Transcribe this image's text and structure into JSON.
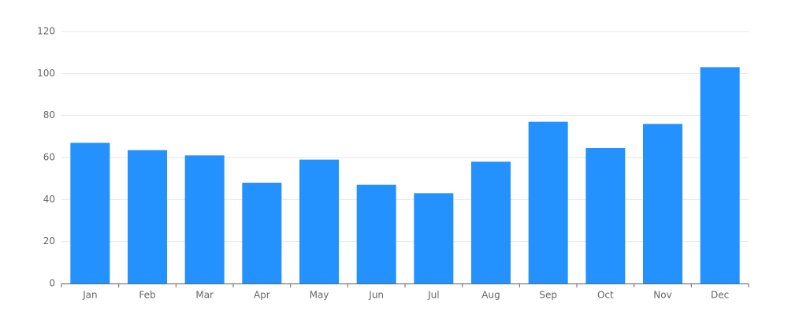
{
  "chart_data": {
    "type": "bar",
    "categories": [
      "Jan",
      "Feb",
      "Mar",
      "Apr",
      "May",
      "Jun",
      "Jul",
      "Aug",
      "Sep",
      "Oct",
      "Nov",
      "Dec"
    ],
    "values": [
      67,
      63.5,
      61,
      48,
      59,
      47,
      43,
      58,
      77,
      64.5,
      76,
      103
    ],
    "color": "#2391fe",
    "ylim": [
      0,
      120
    ],
    "yticks": [
      0,
      20,
      40,
      60,
      80,
      100,
      120
    ],
    "grid": true
  }
}
